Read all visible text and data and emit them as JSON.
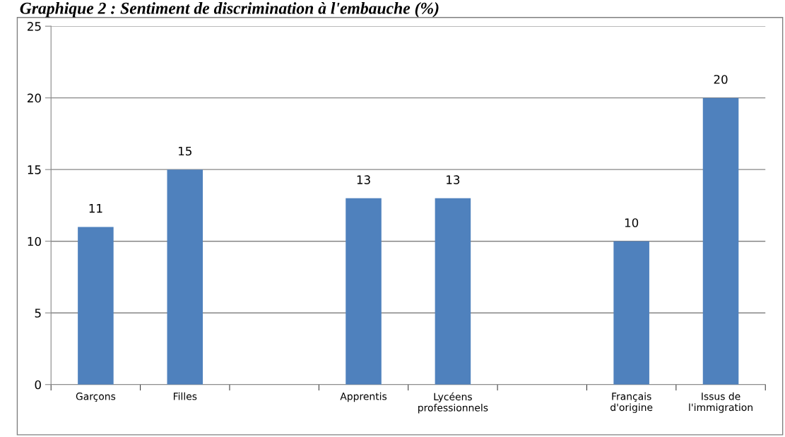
{
  "chart_data": {
    "type": "bar",
    "title": "Graphique 2 : Sentiment de discrimination à l'embauche (%)",
    "categories": [
      "Garçons",
      "Filles",
      null,
      "Apprentis",
      "Lycéens\nprofessionnels",
      null,
      "Français\nd'origine",
      "Issus de\nl'immigration"
    ],
    "values": [
      11,
      15,
      null,
      13,
      13,
      null,
      10,
      20
    ],
    "color": "#4f81bd",
    "ylim": [
      0,
      25
    ],
    "yticks": [
      0,
      5,
      10,
      15,
      20,
      25
    ],
    "grid": "y",
    "data_labels": true
  }
}
